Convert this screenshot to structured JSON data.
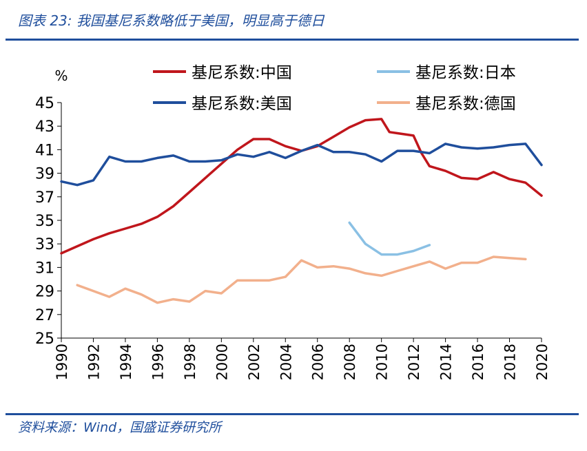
{
  "header": {
    "title": "图表 23:  我国基尼系数略低于美国，明显高于德日"
  },
  "footer": {
    "source": "资料来源：Wind，国盛证券研究所"
  },
  "chart_data": {
    "type": "line",
    "ylabel": "%",
    "ylim": [
      25,
      45
    ],
    "yticks": [
      "25",
      "27",
      "29",
      "31",
      "33",
      "35",
      "37",
      "39",
      "41",
      "43",
      "45"
    ],
    "xlim": [
      1990,
      2020
    ],
    "xticks": [
      "1990",
      "1992",
      "1994",
      "1996",
      "1998",
      "2000",
      "2002",
      "2004",
      "2006",
      "2008",
      "2010",
      "2012",
      "2014",
      "2016",
      "2018",
      "2020"
    ],
    "grid": false,
    "legend": "top",
    "series": [
      {
        "name": "基尼系数:中国",
        "color": "#c0161c",
        "points": [
          [
            1990,
            32.2
          ],
          [
            1991,
            32.8
          ],
          [
            1992,
            33.4
          ],
          [
            1993,
            33.9
          ],
          [
            1994,
            34.3
          ],
          [
            1995,
            34.7
          ],
          [
            1996,
            35.3
          ],
          [
            1997,
            36.2
          ],
          [
            1998,
            37.4
          ],
          [
            1999,
            38.6
          ],
          [
            2000,
            39.8
          ],
          [
            2001,
            41.0
          ],
          [
            2002,
            41.9
          ],
          [
            2003,
            41.9
          ],
          [
            2004,
            41.3
          ],
          [
            2005,
            40.9
          ],
          [
            2006,
            41.3
          ],
          [
            2007,
            42.1
          ],
          [
            2008,
            42.9
          ],
          [
            2009,
            43.5
          ],
          [
            2010,
            43.6
          ],
          [
            2010.5,
            42.5
          ],
          [
            2011,
            42.4
          ],
          [
            2012,
            42.2
          ],
          [
            2012.5,
            40.7
          ],
          [
            2013,
            39.6
          ],
          [
            2014,
            39.2
          ],
          [
            2015,
            38.6
          ],
          [
            2016,
            38.5
          ],
          [
            2017,
            39.1
          ],
          [
            2018,
            38.5
          ],
          [
            2019,
            38.2
          ],
          [
            2020,
            37.1
          ]
        ]
      },
      {
        "name": "基尼系数:美国",
        "color": "#1f4e9c",
        "points": [
          [
            1990,
            38.3
          ],
          [
            1991,
            38.0
          ],
          [
            1992,
            38.4
          ],
          [
            1993,
            40.4
          ],
          [
            1994,
            40.0
          ],
          [
            1995,
            40.0
          ],
          [
            1996,
            40.3
          ],
          [
            1997,
            40.5
          ],
          [
            1998,
            40.0
          ],
          [
            1999,
            40.0
          ],
          [
            2000,
            40.1
          ],
          [
            2001,
            40.6
          ],
          [
            2002,
            40.4
          ],
          [
            2003,
            40.8
          ],
          [
            2004,
            40.3
          ],
          [
            2005,
            40.9
          ],
          [
            2006,
            41.4
          ],
          [
            2007,
            40.8
          ],
          [
            2008,
            40.8
          ],
          [
            2009,
            40.6
          ],
          [
            2010,
            40.0
          ],
          [
            2011,
            40.9
          ],
          [
            2012,
            40.9
          ],
          [
            2013,
            40.7
          ],
          [
            2014,
            41.5
          ],
          [
            2015,
            41.2
          ],
          [
            2016,
            41.1
          ],
          [
            2017,
            41.2
          ],
          [
            2018,
            41.4
          ],
          [
            2019,
            41.5
          ],
          [
            2020,
            39.7
          ]
        ]
      },
      {
        "name": "基尼系数:日本",
        "color": "#8ac0e4",
        "points": [
          [
            2008,
            34.8
          ],
          [
            2009,
            33.0
          ],
          [
            2010,
            32.1
          ],
          [
            2011,
            32.1
          ],
          [
            2012,
            32.4
          ],
          [
            2013,
            32.9
          ]
        ]
      },
      {
        "name": "基尼系数:德国",
        "color": "#f2b08c",
        "points": [
          [
            1991,
            29.5
          ],
          [
            1992,
            29.0
          ],
          [
            1993,
            28.5
          ],
          [
            1994,
            29.2
          ],
          [
            1995,
            28.7
          ],
          [
            1996,
            28.0
          ],
          [
            1997,
            28.3
          ],
          [
            1998,
            28.1
          ],
          [
            1999,
            29.0
          ],
          [
            2000,
            28.8
          ],
          [
            2001,
            29.9
          ],
          [
            2002,
            29.9
          ],
          [
            2003,
            29.9
          ],
          [
            2004,
            30.2
          ],
          [
            2005,
            31.6
          ],
          [
            2006,
            31.0
          ],
          [
            2007,
            31.1
          ],
          [
            2008,
            30.9
          ],
          [
            2009,
            30.5
          ],
          [
            2010,
            30.3
          ],
          [
            2011,
            30.7
          ],
          [
            2012,
            31.1
          ],
          [
            2013,
            31.5
          ],
          [
            2014,
            30.9
          ],
          [
            2015,
            31.4
          ],
          [
            2016,
            31.4
          ],
          [
            2017,
            31.9
          ],
          [
            2018,
            31.8
          ],
          [
            2019,
            31.7
          ]
        ]
      }
    ],
    "legend_order": [
      0,
      2,
      1,
      3
    ]
  }
}
